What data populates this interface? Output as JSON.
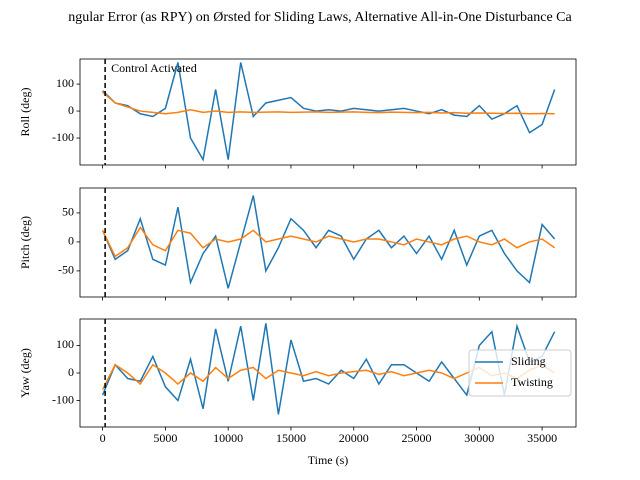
{
  "chart_data": {
    "type": "line",
    "title": "ngular Error (as RPY) on Ørsted for Sliding Laws, Alternative All-in-One Disturbance Ca",
    "xlabel": "Time (s)",
    "annotation": "Control Activated",
    "vline": 200,
    "xlim": [
      -1800,
      37700
    ],
    "xticks": [
      0,
      5000,
      10000,
      15000,
      20000,
      25000,
      30000,
      35000
    ],
    "x": [
      0,
      1000,
      2000,
      3000,
      4000,
      5000,
      6000,
      7000,
      8000,
      9000,
      10000,
      11000,
      12000,
      13000,
      14000,
      15000,
      16000,
      17000,
      18000,
      19000,
      20000,
      21000,
      22000,
      23000,
      24000,
      25000,
      26000,
      27000,
      28000,
      29000,
      30000,
      31000,
      32000,
      33000,
      34000,
      35000,
      36000
    ],
    "series": [
      {
        "name": "Sliding",
        "color": "#1f77b4"
      },
      {
        "name": "Twisting",
        "color": "#ff7f0e"
      }
    ],
    "panels": [
      {
        "ylabel": "Roll (deg)",
        "ylim": [
          -200,
          193
        ],
        "yticks": [
          -100,
          0,
          100
        ],
        "values": [
          [
            75,
            30,
            20,
            -10,
            -20,
            10,
            180,
            -100,
            -180,
            80,
            -180,
            180,
            -20,
            30,
            40,
            50,
            10,
            0,
            5,
            0,
            10,
            5,
            0,
            5,
            10,
            0,
            -10,
            5,
            -15,
            -20,
            20,
            -30,
            -10,
            20,
            -80,
            -50,
            80
          ],
          [
            70,
            30,
            15,
            0,
            -5,
            -10,
            -5,
            5,
            -5,
            0,
            -5,
            -3,
            -5,
            -4,
            -3,
            -5,
            -4,
            -3,
            -5,
            -4,
            -3,
            -5,
            -6,
            -4,
            -5,
            -6,
            -5,
            -7,
            -6,
            -8,
            -7,
            -8,
            -9,
            -8,
            -10,
            -9,
            -10
          ]
        ]
      },
      {
        "ylabel": "Pitch (deg)",
        "ylim": [
          -95,
          93
        ],
        "yticks": [
          -50,
          0,
          50
        ],
        "values": [
          [
            20,
            -30,
            -15,
            40,
            -30,
            -40,
            60,
            -70,
            -20,
            10,
            -80,
            0,
            80,
            -50,
            -10,
            40,
            20,
            -10,
            20,
            10,
            -30,
            5,
            20,
            -10,
            10,
            -20,
            10,
            -30,
            20,
            -40,
            10,
            20,
            -20,
            -50,
            -70,
            30,
            5
          ],
          [
            20,
            -25,
            -10,
            25,
            -5,
            -15,
            20,
            15,
            -10,
            5,
            0,
            5,
            20,
            0,
            5,
            10,
            5,
            0,
            10,
            5,
            0,
            5,
            5,
            0,
            -5,
            5,
            0,
            -5,
            5,
            10,
            0,
            -5,
            5,
            -10,
            0,
            5,
            -10
          ]
        ]
      },
      {
        "ylabel": "Yaw (deg)",
        "ylim": [
          -196,
          196
        ],
        "yticks": [
          -100,
          0,
          100
        ],
        "legend": "center right",
        "values": [
          [
            -80,
            30,
            -20,
            -30,
            60,
            -50,
            -100,
            50,
            -130,
            160,
            -30,
            170,
            -100,
            180,
            -150,
            120,
            -30,
            -20,
            -40,
            10,
            -20,
            50,
            -40,
            30,
            30,
            0,
            -30,
            40,
            -20,
            -80,
            100,
            150,
            -80,
            170,
            40,
            60,
            150
          ],
          [
            -60,
            30,
            0,
            -40,
            30,
            0,
            -40,
            0,
            -30,
            20,
            -20,
            10,
            20,
            -20,
            10,
            0,
            -10,
            5,
            -10,
            0,
            5,
            10,
            -5,
            5,
            -10,
            0,
            10,
            0,
            -20,
            0,
            20,
            -10,
            0,
            -20,
            10,
            30,
            0
          ]
        ]
      }
    ]
  }
}
